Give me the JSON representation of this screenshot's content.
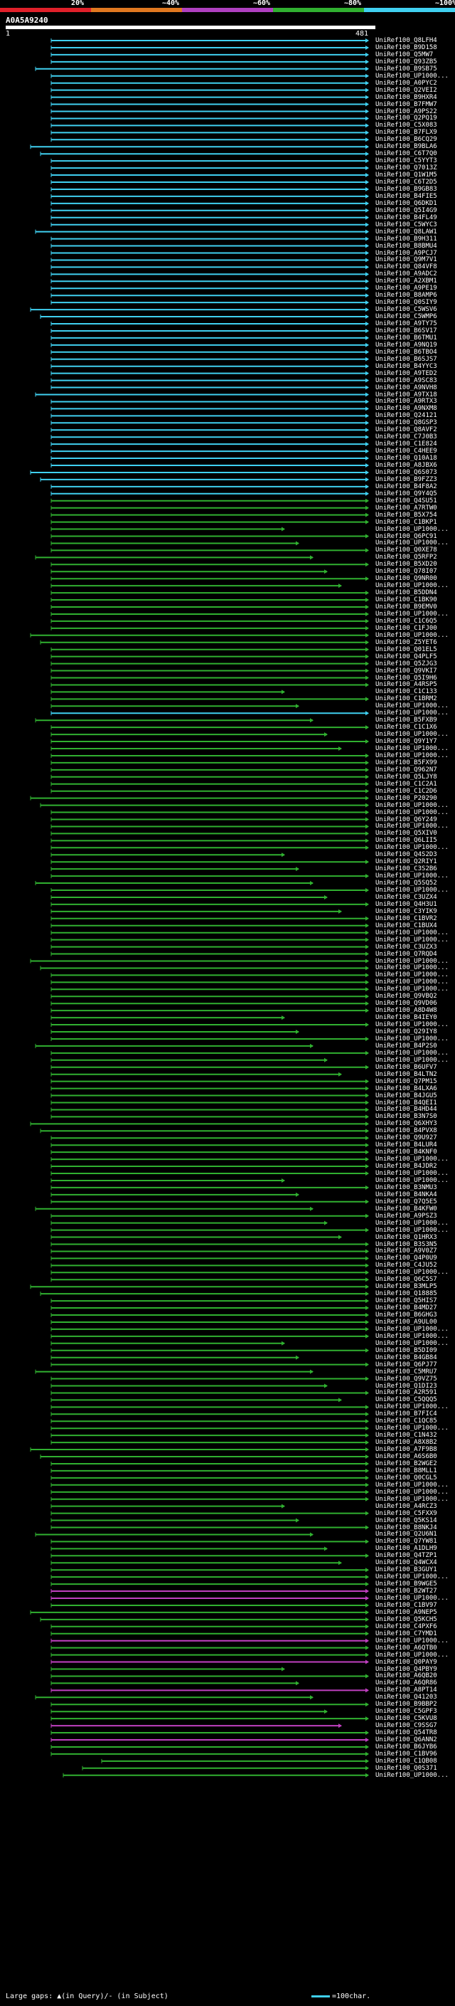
{
  "scale": {
    "labels": [
      "20%",
      "~40%",
      "~60%",
      "~80%",
      "~100%"
    ],
    "colors": [
      "#e0202a",
      "#e07820",
      "#b040c0",
      "#30b030",
      "#40d0f0"
    ]
  },
  "query": {
    "id": "A0A5A9240",
    "start": "1",
    "end": "481"
  },
  "footer": {
    "gaps_text": "Large gaps: ▲(in Query)/- (in Subject)",
    "legend_text": "=100char."
  },
  "hit_colors": {
    "cyan": "#40d0f0",
    "green": "#30b030",
    "magenta": "#c040c0"
  },
  "hits": [
    "UniRef100_Q8LFH4",
    "UniRef100_B9D158",
    "UniRef100_Q5MW7",
    "UniRef100_Q93ZB5",
    "UniRef100_B9SB75",
    "UniRef100_UP1000...",
    "UniRef100_A0PYC2",
    "UniRef100_Q2VEI2",
    "UniRef100_B9HXR4",
    "UniRef100_B7FMW7",
    "UniRef100_A9PS22",
    "UniRef100_Q2PQ19",
    "UniRef100_C5X083",
    "UniRef100_B7FLX9",
    "UniRef100_B6CQ29",
    "UniRef100_B9BLA6",
    "UniRef100_C6T7Q0",
    "UniRef100_C5YYT3",
    "UniRef100_Q7013Z",
    "UniRef100_Q1W1M5",
    "UniRef100_C6T2D5",
    "UniRef100_B9GB83",
    "UniRef100_B4FIE5",
    "UniRef100_Q6DKD1",
    "UniRef100_Q5I4G9",
    "UniRef100_B4FL49",
    "UniRef100_C5WYC3",
    "UniRef100_Q8LAW1",
    "UniRef100_B9H311",
    "UniRef100_B8BMU4",
    "UniRef100_A9PCJ7",
    "UniRef100_Q9M7V1",
    "UniRef100_Q84VF8",
    "UniRef100_A9ADC2",
    "UniRef100_A2XBM1",
    "UniRef100_A9PE19",
    "UniRef100_B8AMP6",
    "UniRef100_Q0SIY9",
    "UniRef100_C5WSV6",
    "UniRef100_C5WMP6",
    "UniRef100_A9TY75",
    "UniRef100_B6SV17",
    "UniRef100_B6TMU1",
    "UniRef100_A9NQ19",
    "UniRef100_B6TBO4",
    "UniRef100_B6SJS7",
    "UniRef100_B4YYC3",
    "UniRef100_A9TED2",
    "UniRef100_A9SC83",
    "UniRef100_A9NVH8",
    "UniRef100_A9TX18",
    "UniRef100_A9RTX3",
    "UniRef100_A9NXM8",
    "UniRef100_Q24121",
    "UniRef100_Q8GSP3",
    "UniRef100_Q8AVF2",
    "UniRef100_C7J0B3",
    "UniRef100_C1E824",
    "UniRef100_C4HEE9",
    "UniRef100_Q10A18",
    "UniRef100_A8JBX6",
    "UniRef100_Q6S073",
    "UniRef100_B9FZZ3",
    "UniRef100_B4F8A2",
    "UniRef100_Q9Y4Q5",
    "UniRef100_Q4SU51",
    "UniRef100_A7RTW0",
    "UniRef100_B5X754",
    "UniRef100_C1BKP1",
    "UniRef100_UP1000...",
    "UniRef100_Q6PC91",
    "UniRef100_UP1000...",
    "UniRef100_Q0XE78",
    "UniRef100_Q5RFP2",
    "UniRef100_B5XD20",
    "UniRef100_Q78I07",
    "UniRef100_Q9NR00",
    "UniRef100_UP1000...",
    "UniRef100_B5DDN4",
    "UniRef100_C1BK90",
    "UniRef100_B9EMV0",
    "UniRef100_UP1000...",
    "UniRef100_C1C6Q5",
    "UniRef100_C1FJ00",
    "UniRef100_UP1000...",
    "UniRef100_Z5YET6",
    "UniRef100_Q01EL5",
    "UniRef100_Q4PLF5",
    "UniRef100_Q5ZJG3",
    "UniRef100_Q9VKI7",
    "UniRef100_Q5I9H6",
    "UniRef100_A4RSP5",
    "UniRef100_C1C133",
    "UniRef100_C1BRM2",
    "UniRef100_UP1000...",
    "UniRef100_UP1000...",
    "UniRef100_B5FXB9",
    "UniRef100_C1C1X6",
    "UniRef100_UP1000...",
    "UniRef100_Q9Y1Y7",
    "UniRef100_UP1000...",
    "UniRef100_UP1000...",
    "UniRef100_B5FX99",
    "UniRef100_Q962N7",
    "UniRef100_Q5LJY8",
    "UniRef100_C1C2A1",
    "UniRef100_C1C2D6",
    "UniRef100_P20290",
    "UniRef100_UP1000...",
    "UniRef100_UP1000...",
    "UniRef100_Q6Y249",
    "UniRef100_UP1000...",
    "UniRef100_Q5XIV0",
    "UniRef100_Q6LII5",
    "UniRef100_UP1000...",
    "UniRef100_Q4S2D3",
    "UniRef100_Q2RIY1",
    "UniRef100_C3S2B6",
    "UniRef100_UP1000...",
    "UniRef100_Q5SQ52",
    "UniRef100_UP1000...",
    "UniRef100_C3UZX4",
    "UniRef100_Q4H3U1",
    "UniRef100_C3YIK9",
    "UniRef100_C1BVR2",
    "UniRef100_C1BUX4",
    "UniRef100_UP1000...",
    "UniRef100_UP1000...",
    "UniRef100_C3UZX3",
    "UniRef100_Q7RQD4",
    "UniRef100_UP1000...",
    "UniRef100_UP1000...",
    "UniRef100_UP1000...",
    "UniRef100_UP1000...",
    "UniRef100_UP1000...",
    "UniRef100_Q9VBQ2",
    "UniRef100_Q9VD06",
    "UniRef100_A8D4W8",
    "UniRef100_B4IEY0",
    "UniRef100_UP1000...",
    "UniRef100_Q29IY8",
    "UniRef100_UP1000...",
    "UniRef100_B4P2S0",
    "UniRef100_UP1000...",
    "UniRef100_UP1000...",
    "UniRef100_B6UFV7",
    "UniRef100_B4LTN2",
    "UniRef100_Q7PM15",
    "UniRef100_B4LXA6",
    "UniRef100_B4JGU5",
    "UniRef100_B4QEI1",
    "UniRef100_B4HD44",
    "UniRef100_B3N7S0",
    "UniRef100_Q6XHY3",
    "UniRef100_B4PVX8",
    "UniRef100_Q9U927",
    "UniRef100_B4LUR4",
    "UniRef100_B4KNF0",
    "UniRef100_UP1000...",
    "UniRef100_B4JDR2",
    "UniRef100_UP1000...",
    "UniRef100_UP1000...",
    "UniRef100_B3NMU3",
    "UniRef100_B4NKA4",
    "UniRef100_Q7Q5E5",
    "UniRef100_B4KFW0",
    "UniRef100_A9PSZ3",
    "UniRef100_UP1000...",
    "UniRef100_UP1000...",
    "UniRef100_Q1HRX3",
    "UniRef100_B3S3N5",
    "UniRef100_A9V0Z7",
    "UniRef100_Q4P0U9",
    "UniRef100_C4JU52",
    "UniRef100_UP1000...",
    "UniRef100_Q6C5S7",
    "UniRef100_B3MLP5",
    "UniRef100_Q18885",
    "UniRef100_Q5HIS7",
    "UniRef100_B4MD27",
    "UniRef100_B6GHG3",
    "UniRef100_A9UL00",
    "UniRef100_UP1000...",
    "UniRef100_UP1000...",
    "UniRef100_UP1000...",
    "UniRef100_B5DI09",
    "UniRef100_B4GB84",
    "UniRef100_Q6PJ77",
    "UniRef100_C5MRU7",
    "UniRef100_Q9VZ75",
    "UniRef100_Q1DI23",
    "UniRef100_A2R591",
    "UniRef100_C5QQQ5",
    "UniRef100_UP1000...",
    "UniRef100_B7FIC4",
    "UniRef100_C1QC85",
    "UniRef100_UP1000...",
    "UniRef100_C1N432",
    "UniRef100_A8X8B2",
    "UniRef100_A7F9B8",
    "UniRef100_A6S6B0",
    "UniRef100_B2WGE2",
    "UniRef100_B8MLL1",
    "UniRef100_Q0CGL5",
    "UniRef100_UP1000...",
    "UniRef100_UP1000...",
    "UniRef100_UP1000...",
    "UniRef100_A4RCZ3",
    "UniRef100_C5FXX9",
    "UniRef100_Q5KS14",
    "UniRef100_B8NKJ4",
    "UniRef100_Q2U6N1",
    "UniRef100_Q7YW81",
    "UniRef100_A1DLH9",
    "UniRef100_Q4TZP1",
    "UniRef100_Q4WCX4",
    "UniRef100_B3GUY1",
    "UniRef100_UP1000...",
    "UniRef100_B9WGE5",
    "UniRef100_B2WT27",
    "UniRef100_UP1000...",
    "UniRef100_C1BV97",
    "UniRef100_A9NEP5",
    "UniRef100_Q5KCH5",
    "UniRef100_C4PXF6",
    "UniRef100_C7YMD1",
    "UniRef100_UP1000...",
    "UniRef100_A6QTB0",
    "UniRef100_UP1000...",
    "UniRef100_Q0PAY9",
    "UniRef100_Q4PBY9",
    "UniRef100_A6QB20",
    "UniRef100_A6QR86",
    "UniRef100_A8PT14",
    "UniRef100_Q41203",
    "UniRef100_B9BBP2",
    "UniRef100_C5GPF3",
    "UniRef100_C5KVU8",
    "UniRef100_C9SSG7",
    "UniRef100_Q54TR8",
    "UniRef100_Q6ANN2",
    "UniRef100_B6JYB6",
    "UniRef100_C1BV96",
    "UniRef100_C1QB08",
    "UniRef100_Q0S371",
    "UniRef100_UP1000..."
  ]
}
